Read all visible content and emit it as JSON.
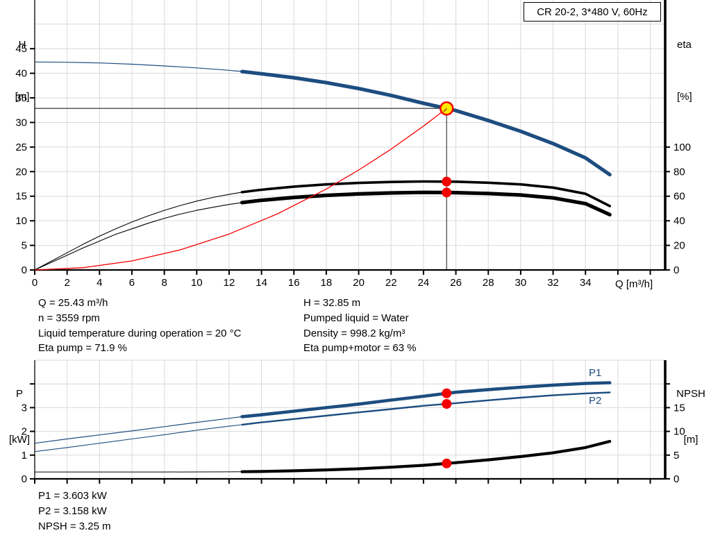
{
  "title_box": "CR 20-2, 3*480 V, 60Hz",
  "axis_heads": {
    "h_sym": "H",
    "h_unit": "[m]",
    "eta_sym": "eta",
    "eta_unit": "[%]",
    "q_label": "Q [m³/h]",
    "p_sym": "P",
    "p_unit": "[kW]",
    "npsh_sym": "NPSH",
    "npsh_unit": "[m]"
  },
  "curve_labels": {
    "p1": "P1",
    "p2": "P2"
  },
  "info_top_left": [
    "Q = 25.43 m³/h",
    "n = 3559 rpm",
    "Liquid temperature during operation = 20 °C",
    "Eta pump = 71.9 %"
  ],
  "info_top_right": [
    "H = 32.85 m",
    "Pumped liquid = Water",
    "Density = 998.2 kg/m³",
    "Eta pump+motor = 63 %"
  ],
  "info_bottom": [
    "P1 = 3.603 kW",
    "P2 = 3.158 kW",
    "NPSH = 3.25 m"
  ],
  "colors": {
    "blue": "#1d4d80",
    "black": "#000000",
    "red": "#f40000",
    "grid": "#d9d9d9",
    "crosshair": "#58595b",
    "dot_fill": "#f40000",
    "op_fill": "#ffe800",
    "axis": "#000000"
  },
  "chart_data": [
    {
      "id": "head-capacity",
      "type": "line",
      "title": "CR 20-2, 3*480 V, 60Hz",
      "x_axis": {
        "label": "Q [m³/h]",
        "min": 0,
        "max": 38.9,
        "tick_values": [
          0,
          2,
          4,
          6,
          8,
          10,
          12,
          14,
          16,
          18,
          20,
          22,
          24,
          26,
          28,
          30,
          32,
          34,
          36,
          38
        ],
        "tick_labels": [
          "0",
          "2",
          "4",
          "6",
          "8",
          "10",
          "12",
          "14",
          "16",
          "18",
          "20",
          "22",
          "24",
          "26",
          "28",
          "30",
          "32",
          "34",
          null,
          null
        ]
      },
      "y_left": {
        "key": "H",
        "label": "H [m]",
        "min": 0,
        "max": 55,
        "tick_values": [
          0,
          5,
          10,
          15,
          20,
          25,
          30,
          35,
          40,
          45
        ],
        "tick_labels": [
          "0",
          "5",
          "10",
          "15",
          "20",
          "25",
          "30",
          "35",
          "40",
          "45"
        ],
        "grid_values": [
          5,
          10,
          15,
          20,
          25,
          30,
          35,
          40,
          45,
          50
        ]
      },
      "y_right": {
        "key": "eta",
        "label": "eta [%]",
        "min": 0,
        "max": 110,
        "tick_values": [
          0,
          20,
          40,
          60,
          80,
          100
        ],
        "tick_labels": [
          "0",
          "20",
          "40",
          "60",
          "80",
          "100"
        ]
      },
      "series": [
        {
          "name": "eta-pump-curve",
          "axis": "eta",
          "color": "black",
          "thin_until": 12.8,
          "width_thin": 1.1,
          "width_thick": 3.6,
          "points": [
            [
              0,
              0
            ],
            [
              1,
              7
            ],
            [
              2,
              14
            ],
            [
              3,
              21
            ],
            [
              4,
              27.5
            ],
            [
              5,
              33.5
            ],
            [
              6,
              39
            ],
            [
              7,
              44
            ],
            [
              8,
              48.5
            ],
            [
              9,
              52.5
            ],
            [
              10,
              56
            ],
            [
              11,
              59
            ],
            [
              12,
              61.5
            ],
            [
              12.8,
              63.3
            ],
            [
              14,
              65.3
            ],
            [
              16,
              67.8
            ],
            [
              18,
              69.6
            ],
            [
              20,
              70.8
            ],
            [
              22,
              71.6
            ],
            [
              24,
              72
            ],
            [
              25.43,
              71.9
            ],
            [
              26,
              71.8
            ],
            [
              28,
              71
            ],
            [
              30,
              69.6
            ],
            [
              32,
              67
            ],
            [
              34,
              62
            ],
            [
              35.5,
              52
            ]
          ]
        },
        {
          "name": "eta-pump-motor-curve",
          "axis": "eta",
          "color": "black",
          "thin_until": 12.8,
          "width_thin": 1.1,
          "width_thick": 5.2,
          "points": [
            [
              0,
              0
            ],
            [
              1,
              6
            ],
            [
              2,
              12
            ],
            [
              3,
              18
            ],
            [
              4,
              23.5
            ],
            [
              5,
              29
            ],
            [
              6,
              33.5
            ],
            [
              7,
              38
            ],
            [
              8,
              42
            ],
            [
              9,
              45.5
            ],
            [
              10,
              48.5
            ],
            [
              11,
              51
            ],
            [
              12,
              53.3
            ],
            [
              12.8,
              54.8
            ],
            [
              14,
              56.7
            ],
            [
              16,
              59
            ],
            [
              18,
              60.7
            ],
            [
              20,
              61.9
            ],
            [
              22,
              62.7
            ],
            [
              24,
              63.1
            ],
            [
              25.43,
              63
            ],
            [
              26,
              62.9
            ],
            [
              28,
              62.2
            ],
            [
              30,
              61
            ],
            [
              32,
              58.6
            ],
            [
              34,
              54
            ],
            [
              35.5,
              45
            ]
          ]
        },
        {
          "name": "system-curve",
          "axis": "H",
          "color": "red",
          "thin_until": 99,
          "width_thin": 1.3,
          "width_thick": 1.3,
          "points": [
            [
              0,
              0
            ],
            [
              3,
              0.46
            ],
            [
              6,
              1.83
            ],
            [
              9,
              4.11
            ],
            [
              12,
              7.31
            ],
            [
              15,
              11.43
            ],
            [
              18,
              16.46
            ],
            [
              20,
              20.32
            ],
            [
              22,
              24.58
            ],
            [
              24,
              29.26
            ],
            [
              25.43,
              32.85
            ]
          ]
        },
        {
          "name": "pump-curve",
          "axis": "H",
          "color": "blue",
          "thin_until": 12.8,
          "width_thin": 1.2,
          "width_thick": 5.2,
          "points": [
            [
              0,
              42.3
            ],
            [
              2,
              42.25
            ],
            [
              4,
              42.1
            ],
            [
              6,
              41.85
            ],
            [
              8,
              41.5
            ],
            [
              10,
              41.1
            ],
            [
              12,
              40.6
            ],
            [
              12.8,
              40.35
            ],
            [
              14,
              39.9
            ],
            [
              16,
              39.1
            ],
            [
              18,
              38.1
            ],
            [
              20,
              36.9
            ],
            [
              22,
              35.5
            ],
            [
              24,
              33.9
            ],
            [
              25.43,
              32.85
            ],
            [
              26,
              32.4
            ],
            [
              28,
              30.4
            ],
            [
              30,
              28.2
            ],
            [
              32,
              25.7
            ],
            [
              34,
              22.8
            ],
            [
              35.5,
              19.4
            ]
          ]
        }
      ],
      "duty_point": {
        "q": 25.43,
        "h": 32.85
      },
      "dots_q": 25.43,
      "dots": [
        {
          "axis": "eta",
          "v": 71.9
        },
        {
          "axis": "eta",
          "v": 63
        }
      ]
    },
    {
      "id": "power-npsh",
      "type": "line",
      "x_axis": {
        "label": "",
        "min": 0,
        "max": 38.9,
        "tick_values": [
          0,
          2,
          4,
          6,
          8,
          10,
          12,
          14,
          16,
          18,
          20,
          22,
          24,
          26,
          28,
          30,
          32,
          34,
          36,
          38
        ],
        "tick_labels": [
          null,
          null,
          null,
          null,
          null,
          null,
          null,
          null,
          null,
          null,
          null,
          null,
          null,
          null,
          null,
          null,
          null,
          null,
          null,
          null
        ]
      },
      "y_left": {
        "key": "P",
        "label": "P [kW]",
        "min": 0,
        "max": 5,
        "tick_values": [
          0,
          1,
          2,
          3,
          4
        ],
        "tick_labels": [
          "0",
          "1",
          "2",
          "3",
          null
        ],
        "grid_values": [
          1,
          2,
          3,
          4,
          5
        ]
      },
      "y_right": {
        "key": "NPSH",
        "label": "NPSH [m]",
        "min": 0,
        "max": 25,
        "tick_values": [
          0,
          5,
          10,
          15,
          20
        ],
        "tick_labels": [
          "0",
          "5",
          "10",
          "15",
          null
        ]
      },
      "series": [
        {
          "name": "p2-curve",
          "axis": "P",
          "color": "blue",
          "thin_until": 12.8,
          "width_thin": 1.1,
          "width_thick": 2.4,
          "points": [
            [
              0,
              1.15
            ],
            [
              2,
              1.32
            ],
            [
              4,
              1.5
            ],
            [
              6,
              1.68
            ],
            [
              8,
              1.86
            ],
            [
              10,
              2.05
            ],
            [
              12,
              2.22
            ],
            [
              12.8,
              2.28
            ],
            [
              14,
              2.38
            ],
            [
              16,
              2.52
            ],
            [
              18,
              2.66
            ],
            [
              20,
              2.8
            ],
            [
              22,
              2.94
            ],
            [
              24,
              3.08
            ],
            [
              25.43,
              3.158
            ],
            [
              26,
              3.19
            ],
            [
              28,
              3.31
            ],
            [
              30,
              3.42
            ],
            [
              32,
              3.52
            ],
            [
              34,
              3.6
            ],
            [
              35.5,
              3.64
            ]
          ]
        },
        {
          "name": "p1-curve",
          "axis": "P",
          "color": "blue",
          "thin_until": 12.8,
          "width_thin": 1.2,
          "width_thick": 4.6,
          "points": [
            [
              0,
              1.5
            ],
            [
              2,
              1.68
            ],
            [
              4,
              1.85
            ],
            [
              6,
              2.02
            ],
            [
              8,
              2.2
            ],
            [
              10,
              2.38
            ],
            [
              12,
              2.55
            ],
            [
              12.8,
              2.62
            ],
            [
              14,
              2.7
            ],
            [
              16,
              2.85
            ],
            [
              18,
              3.0
            ],
            [
              20,
              3.15
            ],
            [
              22,
              3.32
            ],
            [
              24,
              3.48
            ],
            [
              25.43,
              3.603
            ],
            [
              26,
              3.65
            ],
            [
              28,
              3.76
            ],
            [
              30,
              3.86
            ],
            [
              32,
              3.95
            ],
            [
              34,
              4.02
            ],
            [
              35.5,
              4.05
            ]
          ]
        },
        {
          "name": "npsh-curve",
          "axis": "NPSH",
          "color": "black",
          "thin_until": 12.8,
          "width_thin": 1.0,
          "width_thick": 4.2,
          "points": [
            [
              0,
              1.45
            ],
            [
              4,
              1.45
            ],
            [
              8,
              1.45
            ],
            [
              12,
              1.48
            ],
            [
              12.8,
              1.5
            ],
            [
              14,
              1.55
            ],
            [
              16,
              1.7
            ],
            [
              18,
              1.88
            ],
            [
              20,
              2.12
            ],
            [
              22,
              2.45
            ],
            [
              24,
              2.85
            ],
            [
              25.43,
              3.25
            ],
            [
              26,
              3.4
            ],
            [
              28,
              4.0
            ],
            [
              30,
              4.7
            ],
            [
              32,
              5.5
            ],
            [
              34,
              6.6
            ],
            [
              35.5,
              7.9
            ]
          ]
        }
      ],
      "dots_q": 25.43,
      "dots": [
        {
          "axis": "P",
          "v": 3.603
        },
        {
          "axis": "P",
          "v": 3.158
        },
        {
          "axis": "NPSH",
          "v": 3.25
        }
      ]
    }
  ]
}
